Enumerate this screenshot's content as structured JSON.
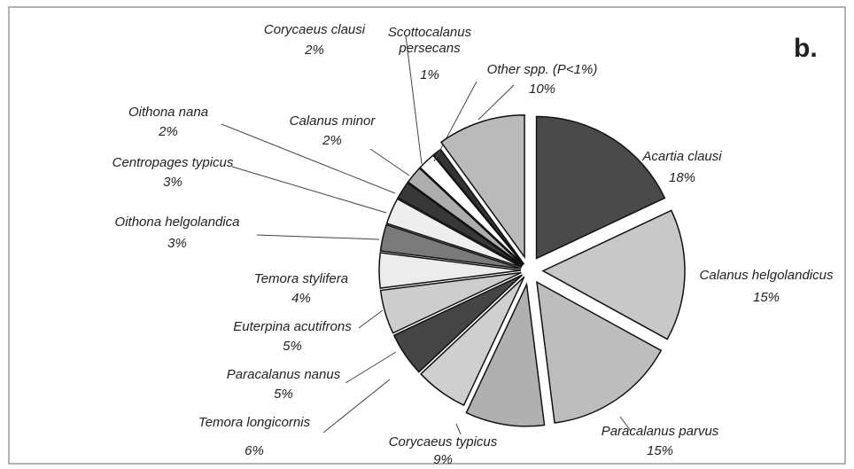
{
  "chart_data": {
    "type": "pie",
    "panel_label": "b.",
    "categories": [
      "Acartia clausi",
      "Calanus helgolandicus",
      "Paracalanus parvus",
      "Corycaeus typicus",
      "Temora longicornis",
      "Paracalanus nanus",
      "Euterpina acutifrons",
      "Temora stylifera",
      "Oithona helgolandica",
      "Centropages typicus",
      "Oithona nana",
      "Calanus minor",
      "Corycaeus clausi",
      "Scottocalanus persecans",
      "Other spp. (P<1%)"
    ],
    "values": [
      18,
      15,
      15,
      9,
      6,
      5,
      5,
      4,
      3,
      3,
      2,
      2,
      2,
      1,
      10
    ],
    "value_labels": [
      "18%",
      "15%",
      "15%",
      "9%",
      "6%",
      "5%",
      "5%",
      "4%",
      "3%",
      "3%",
      "2%",
      "2%",
      "2%",
      "1%",
      "10%"
    ],
    "colors": [
      "#4a4a4a",
      "#c8c8c8",
      "#bdbdbd",
      "#b0b0b0",
      "#cfcfcf",
      "#454545",
      "#cdcdcd",
      "#ececec",
      "#7a7a7a",
      "#eeeeee",
      "#383838",
      "#adadad",
      "#ffffff",
      "#333333",
      "#bababa"
    ]
  }
}
